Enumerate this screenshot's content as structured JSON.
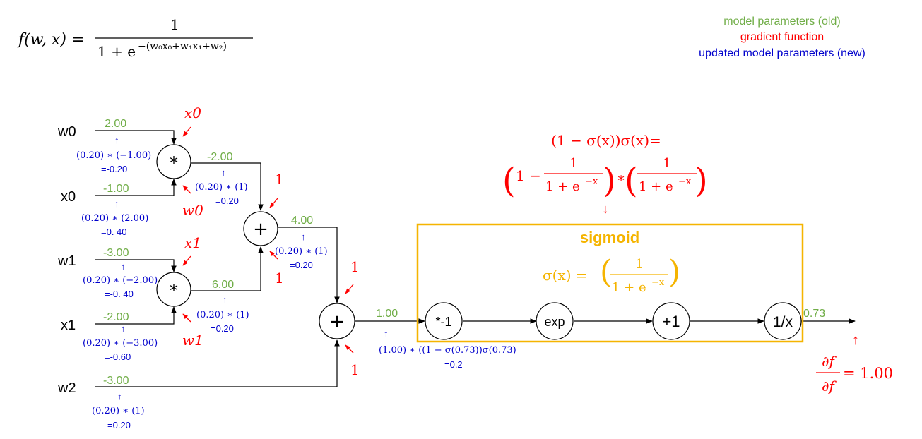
{
  "legend": {
    "old": "model parameters (old)",
    "gradient": "gradient function",
    "new": "updated model parameters (new)"
  },
  "formula": {
    "lhs": "f(w, x) =",
    "numerator": "1",
    "denominator": "1 + e",
    "exponent": "−(w₀x₀+w₁x₁+w₂)"
  },
  "inputs": {
    "w0": {
      "label": "w0",
      "value": "2.00",
      "update": "(0.20) ∗ (−1.00)",
      "result": "=-0.20"
    },
    "x0": {
      "label": "x0",
      "value": "-1.00",
      "update": "(0.20) ∗ (2.00)",
      "result": "=0. 40"
    },
    "w1": {
      "label": "w1",
      "value": "-3.00",
      "update": "(0.20) ∗ (−2.00)",
      "result": "=-0. 40"
    },
    "x1": {
      "label": "x1",
      "value": "-2.00",
      "update": "(0.20) ∗ (−3.00)",
      "result": "=-0.60"
    },
    "w2": {
      "label": "w2",
      "value": "-3.00",
      "update": "(0.20) ∗ (1)",
      "result": "=0.20"
    }
  },
  "mul0": {
    "symbol": "*",
    "grad_top": "x0",
    "grad_bottom": "w0",
    "out": "-2.00",
    "update": "(0.20) ∗ (1)",
    "result": "=0.20"
  },
  "mul1": {
    "symbol": "*",
    "grad_top": "x1",
    "grad_bottom": "w1",
    "out": "6.00",
    "update": "(0.20) ∗ (1)",
    "result": "=0.20"
  },
  "add0": {
    "symbol": "+",
    "grad_top": "1",
    "grad_bottom": "1",
    "out": "4.00",
    "update": "(0.20) ∗ (1)",
    "result": "=0.20"
  },
  "add1": {
    "symbol": "+",
    "grad_top": "1",
    "grad_bottom": "1",
    "out": "1.00",
    "update": "(1.00) ∗ ((1 − σ(0.73))σ(0.73)",
    "result": "=0.2"
  },
  "sigmoid_box": {
    "title": "sigmoid",
    "def_lhs": "σ(x) =",
    "def_num": "1",
    "def_den": "1 + e",
    "def_exp": "−x",
    "nodes": [
      "*-1",
      "exp",
      "+1",
      "1/x"
    ],
    "output": "0.73"
  },
  "sigmoid_grad": {
    "line1": "(1 − σ(x))σ(x)=",
    "part1_prefix": "1 −",
    "num": "1",
    "den": "1 + e",
    "exp": "−x",
    "times": "∗"
  },
  "final": {
    "num": "∂f",
    "den": "∂f",
    "value": "= 1.00"
  },
  "colors": {
    "old": "#70ad47",
    "gradient": "#ff0000",
    "new": "#0000cc",
    "sigmoid": "#f5b400"
  }
}
